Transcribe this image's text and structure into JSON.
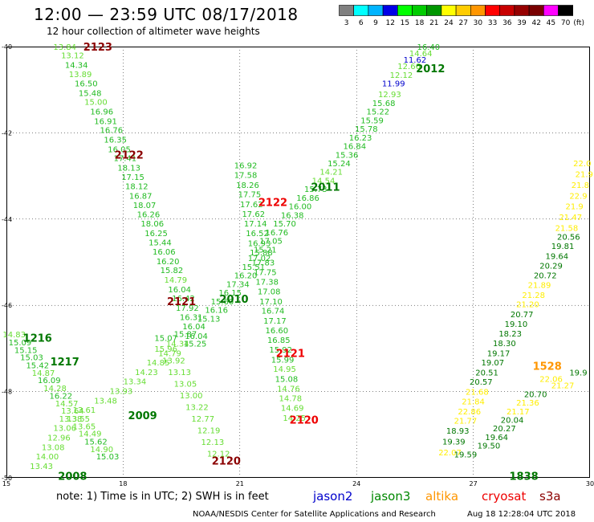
{
  "header": {
    "title": "12:00 — 23:59 UTC 08/17/2018",
    "subtitle": "12 hour collection of altimeter wave heights"
  },
  "color_scale": {
    "unit": "(ft)",
    "bins": [
      {
        "label": "3",
        "color": "#808080"
      },
      {
        "label": "6",
        "color": "#00ffff"
      },
      {
        "label": "9",
        "color": "#00b4ff"
      },
      {
        "label": "12",
        "color": "#0000e6"
      },
      {
        "label": "15",
        "color": "#00ff00"
      },
      {
        "label": "18",
        "color": "#00cc00"
      },
      {
        "label": "21",
        "color": "#009600"
      },
      {
        "label": "24",
        "color": "#ffff00"
      },
      {
        "label": "27",
        "color": "#ffcc00"
      },
      {
        "label": "30",
        "color": "#ff9600"
      },
      {
        "label": "33",
        "color": "#ff0000"
      },
      {
        "label": "36",
        "color": "#c80000"
      },
      {
        "label": "39",
        "color": "#960000"
      },
      {
        "label": "42",
        "color": "#780000"
      },
      {
        "label": "45",
        "color": "#ff00ff"
      },
      {
        "label": "70",
        "color": "#000000"
      }
    ]
  },
  "map": {
    "lon_min": 15,
    "lon_max": 30,
    "lat_min": -50,
    "lat_max": -40,
    "lon_ticks": [
      "15",
      "18",
      "21",
      "24",
      "27",
      "30"
    ],
    "lat_ticks": [
      "-40",
      "-42",
      "-44",
      "-46",
      "-48",
      "-50"
    ],
    "grid": true
  },
  "colors": {
    "c_lt": "#66dd33",
    "c_md": "#22bb22",
    "c_dk": "#007700",
    "c_bl": "#0000cc",
    "c_yl": "#ffee00",
    "c_ylg": "#ddee00"
  },
  "labels": [
    {
      "t": "13.84",
      "lon": 16.5,
      "lat": -40.0,
      "c": "c_lt"
    },
    {
      "t": "13.12",
      "lon": 16.7,
      "lat": -40.2,
      "c": "c_lt"
    },
    {
      "t": "14.34",
      "lon": 16.8,
      "lat": -40.42,
      "c": "c_md"
    },
    {
      "t": "13.89",
      "lon": 16.9,
      "lat": -40.63,
      "c": "c_lt"
    },
    {
      "t": "16.50",
      "lon": 17.05,
      "lat": -40.85,
      "c": "c_md"
    },
    {
      "t": "15.48",
      "lon": 17.15,
      "lat": -41.07,
      "c": "c_md"
    },
    {
      "t": "15.00",
      "lon": 17.3,
      "lat": -41.28,
      "c": "c_lt"
    },
    {
      "t": "16.96",
      "lon": 17.45,
      "lat": -41.5,
      "c": "c_md"
    },
    {
      "t": "16.91",
      "lon": 17.55,
      "lat": -41.72,
      "c": "c_md"
    },
    {
      "t": "16.76",
      "lon": 17.7,
      "lat": -41.93,
      "c": "c_md"
    },
    {
      "t": "16.35",
      "lon": 17.8,
      "lat": -42.15,
      "c": "c_md"
    },
    {
      "t": "16.05",
      "lon": 17.9,
      "lat": -42.37,
      "c": "c_md"
    },
    {
      "t": "17.41",
      "lon": 18.05,
      "lat": -42.58,
      "c": "c_md"
    },
    {
      "t": "18.13",
      "lon": 18.15,
      "lat": -42.8,
      "c": "c_md"
    },
    {
      "t": "17.15",
      "lon": 18.25,
      "lat": -43.02,
      "c": "c_md"
    },
    {
      "t": "18.12",
      "lon": 18.35,
      "lat": -43.23,
      "c": "c_md"
    },
    {
      "t": "16.87",
      "lon": 18.45,
      "lat": -43.45,
      "c": "c_md"
    },
    {
      "t": "18.07",
      "lon": 18.55,
      "lat": -43.67,
      "c": "c_md"
    },
    {
      "t": "16.26",
      "lon": 18.65,
      "lat": -43.88,
      "c": "c_md"
    },
    {
      "t": "18.06",
      "lon": 18.75,
      "lat": -44.1,
      "c": "c_md"
    },
    {
      "t": "16.25",
      "lon": 18.85,
      "lat": -44.32,
      "c": "c_md"
    },
    {
      "t": "15.44",
      "lon": 18.95,
      "lat": -44.53,
      "c": "c_md"
    },
    {
      "t": "16.06",
      "lon": 19.05,
      "lat": -44.75,
      "c": "c_md"
    },
    {
      "t": "16.20",
      "lon": 19.15,
      "lat": -44.97,
      "c": "c_md"
    },
    {
      "t": "15.82",
      "lon": 19.25,
      "lat": -45.18,
      "c": "c_md"
    },
    {
      "t": "14.79",
      "lon": 19.35,
      "lat": -45.4,
      "c": "c_lt"
    },
    {
      "t": "16.04",
      "lon": 19.45,
      "lat": -45.62,
      "c": "c_md"
    },
    {
      "t": "16.42",
      "lon": 19.55,
      "lat": -45.83,
      "c": "c_md"
    },
    {
      "t": "17.92",
      "lon": 19.65,
      "lat": -46.05,
      "c": "c_md"
    },
    {
      "t": "16.31",
      "lon": 19.75,
      "lat": -46.27,
      "c": "c_md"
    },
    {
      "t": "16.04",
      "lon": 19.82,
      "lat": -46.48,
      "c": "c_md"
    },
    {
      "t": "16.04",
      "lon": 19.88,
      "lat": -46.7,
      "c": "c_md"
    },
    {
      "t": "14.83",
      "lon": 15.2,
      "lat": -46.67,
      "c": "c_lt"
    },
    {
      "t": "15.09",
      "lon": 15.35,
      "lat": -46.85,
      "c": "c_md"
    },
    {
      "t": "15.15",
      "lon": 15.5,
      "lat": -47.03,
      "c": "c_md"
    },
    {
      "t": "15.03",
      "lon": 15.65,
      "lat": -47.2,
      "c": "c_md"
    },
    {
      "t": "15.42",
      "lon": 15.8,
      "lat": -47.38,
      "c": "c_md"
    },
    {
      "t": "14.87",
      "lon": 15.95,
      "lat": -47.56,
      "c": "c_lt"
    },
    {
      "t": "16.09",
      "lon": 16.1,
      "lat": -47.73,
      "c": "c_md"
    },
    {
      "t": "14.28",
      "lon": 16.25,
      "lat": -47.91,
      "c": "c_lt"
    },
    {
      "t": "16.22",
      "lon": 16.4,
      "lat": -48.09,
      "c": "c_md"
    },
    {
      "t": "14.57",
      "lon": 16.55,
      "lat": -48.27,
      "c": "c_lt"
    },
    {
      "t": "13.64",
      "lon": 16.7,
      "lat": -48.44,
      "c": "c_lt"
    },
    {
      "t": "13.55",
      "lon": 16.85,
      "lat": -48.62,
      "c": "c_lt"
    },
    {
      "t": "13.65",
      "lon": 17.0,
      "lat": -48.8,
      "c": "c_lt"
    },
    {
      "t": "14.49",
      "lon": 17.15,
      "lat": -48.97,
      "c": "c_lt"
    },
    {
      "t": "15.62",
      "lon": 17.3,
      "lat": -49.15,
      "c": "c_md"
    },
    {
      "t": "14.90",
      "lon": 17.45,
      "lat": -49.33,
      "c": "c_lt"
    },
    {
      "t": "15.03",
      "lon": 17.6,
      "lat": -49.5,
      "c": "c_md"
    },
    {
      "t": "13.43",
      "lon": 15.9,
      "lat": -49.72,
      "c": "c_lt"
    },
    {
      "t": "14.00",
      "lon": 16.05,
      "lat": -49.5,
      "c": "c_lt"
    },
    {
      "t": "13.08",
      "lon": 16.2,
      "lat": -49.28,
      "c": "c_lt"
    },
    {
      "t": "12.96",
      "lon": 16.35,
      "lat": -49.06,
      "c": "c_lt"
    },
    {
      "t": "13.06",
      "lon": 16.5,
      "lat": -48.84,
      "c": "c_lt"
    },
    {
      "t": "13.38",
      "lon": 16.65,
      "lat": -48.62,
      "c": "c_lt"
    },
    {
      "t": "13.61",
      "lon": 17.0,
      "lat": -48.42,
      "c": "c_lt"
    },
    {
      "t": "13.48",
      "lon": 17.55,
      "lat": -48.2,
      "c": "c_lt"
    },
    {
      "t": "13.93",
      "lon": 17.95,
      "lat": -47.98,
      "c": "c_lt"
    },
    {
      "t": "13.34",
      "lon": 18.3,
      "lat": -47.76,
      "c": "c_lt"
    },
    {
      "t": "14.23",
      "lon": 18.6,
      "lat": -47.54,
      "c": "c_lt"
    },
    {
      "t": "14.85",
      "lon": 18.9,
      "lat": -47.32,
      "c": "c_lt"
    },
    {
      "t": "14.79",
      "lon": 19.2,
      "lat": -47.1,
      "c": "c_lt"
    },
    {
      "t": "14.34",
      "lon": 19.4,
      "lat": -46.88,
      "c": "c_lt"
    },
    {
      "t": "15.87",
      "lon": 19.6,
      "lat": -46.66,
      "c": "c_md"
    },
    {
      "t": "15.25",
      "lon": 19.85,
      "lat": -46.88,
      "c": "c_md"
    },
    {
      "t": "15.13",
      "lon": 20.2,
      "lat": -46.3,
      "c": "c_md"
    },
    {
      "t": "16.16",
      "lon": 20.4,
      "lat": -46.1,
      "c": "c_md"
    },
    {
      "t": "15.60",
      "lon": 20.55,
      "lat": -45.9,
      "c": "c_md"
    },
    {
      "t": "16.15",
      "lon": 20.75,
      "lat": -45.7,
      "c": "c_md"
    },
    {
      "t": "17.34",
      "lon": 20.95,
      "lat": -45.5,
      "c": "c_md"
    },
    {
      "t": "16.20",
      "lon": 21.15,
      "lat": -45.3,
      "c": "c_md"
    },
    {
      "t": "15.51",
      "lon": 21.35,
      "lat": -45.1,
      "c": "c_md"
    },
    {
      "t": "17.02",
      "lon": 21.5,
      "lat": -44.9,
      "c": "c_md"
    },
    {
      "t": "15.21",
      "lon": 21.65,
      "lat": -44.7,
      "c": "c_md"
    },
    {
      "t": "17.05",
      "lon": 21.8,
      "lat": -44.5,
      "c": "c_md"
    },
    {
      "t": "16.76",
      "lon": 21.95,
      "lat": -44.3,
      "c": "c_md"
    },
    {
      "t": "15.70",
      "lon": 22.15,
      "lat": -44.1,
      "c": "c_md"
    },
    {
      "t": "16.38",
      "lon": 22.35,
      "lat": -43.9,
      "c": "c_md"
    },
    {
      "t": "16.00",
      "lon": 22.55,
      "lat": -43.7,
      "c": "c_md"
    },
    {
      "t": "16.86",
      "lon": 22.75,
      "lat": -43.5,
      "c": "c_md"
    },
    {
      "t": "15.73",
      "lon": 22.95,
      "lat": -43.3,
      "c": "c_md"
    },
    {
      "t": "14.54",
      "lon": 23.15,
      "lat": -43.1,
      "c": "c_lt"
    },
    {
      "t": "14.21",
      "lon": 23.35,
      "lat": -42.9,
      "c": "c_lt"
    },
    {
      "t": "15.24",
      "lon": 23.55,
      "lat": -42.7,
      "c": "c_md"
    },
    {
      "t": "15.36",
      "lon": 23.75,
      "lat": -42.5,
      "c": "c_md"
    },
    {
      "t": "16.84",
      "lon": 23.95,
      "lat": -42.3,
      "c": "c_md"
    },
    {
      "t": "16.23",
      "lon": 24.1,
      "lat": -42.1,
      "c": "c_md"
    },
    {
      "t": "15.78",
      "lon": 24.25,
      "lat": -41.9,
      "c": "c_md"
    },
    {
      "t": "15.59",
      "lon": 24.4,
      "lat": -41.7,
      "c": "c_md"
    },
    {
      "t": "15.22",
      "lon": 24.55,
      "lat": -41.5,
      "c": "c_md"
    },
    {
      "t": "15.68",
      "lon": 24.7,
      "lat": -41.3,
      "c": "c_md"
    },
    {
      "t": "12.93",
      "lon": 24.85,
      "lat": -41.1,
      "c": "c_lt"
    },
    {
      "t": "11.99",
      "lon": 24.95,
      "lat": -40.85,
      "c": "c_bl"
    },
    {
      "t": "12.12",
      "lon": 25.15,
      "lat": -40.65,
      "c": "c_lt"
    },
    {
      "t": "12.66",
      "lon": 25.35,
      "lat": -40.45,
      "c": "c_lt"
    },
    {
      "t": "11.62",
      "lon": 25.5,
      "lat": -40.3,
      "c": "c_bl"
    },
    {
      "t": "14.64",
      "lon": 25.65,
      "lat": -40.15,
      "c": "c_lt"
    },
    {
      "t": "16.40",
      "lon": 25.85,
      "lat": -40.0,
      "c": "c_md"
    },
    {
      "t": "16.92",
      "lon": 21.15,
      "lat": -42.75,
      "c": "c_md"
    },
    {
      "t": "17.58",
      "lon": 21.15,
      "lat": -42.97,
      "c": "c_md"
    },
    {
      "t": "18.26",
      "lon": 21.2,
      "lat": -43.2,
      "c": "c_md"
    },
    {
      "t": "17.75",
      "lon": 21.25,
      "lat": -43.42,
      "c": "c_md"
    },
    {
      "t": "17.62",
      "lon": 21.3,
      "lat": -43.65,
      "c": "c_md"
    },
    {
      "t": "17.62",
      "lon": 21.35,
      "lat": -43.87,
      "c": "c_md"
    },
    {
      "t": "17.14",
      "lon": 21.4,
      "lat": -44.1,
      "c": "c_md"
    },
    {
      "t": "16.52",
      "lon": 21.45,
      "lat": -44.32,
      "c": "c_md"
    },
    {
      "t": "16.93",
      "lon": 21.5,
      "lat": -44.55,
      "c": "c_md"
    },
    {
      "t": "15.88",
      "lon": 21.55,
      "lat": -44.77,
      "c": "c_md"
    },
    {
      "t": "17.83",
      "lon": 21.6,
      "lat": -45.0,
      "c": "c_md"
    },
    {
      "t": "17.75",
      "lon": 21.65,
      "lat": -45.22,
      "c": "c_md"
    },
    {
      "t": "17.38",
      "lon": 21.7,
      "lat": -45.45,
      "c": "c_md"
    },
    {
      "t": "17.08",
      "lon": 21.75,
      "lat": -45.67,
      "c": "c_md"
    },
    {
      "t": "17.10",
      "lon": 21.8,
      "lat": -45.9,
      "c": "c_md"
    },
    {
      "t": "16.74",
      "lon": 21.85,
      "lat": -46.12,
      "c": "c_md"
    },
    {
      "t": "17.17",
      "lon": 21.9,
      "lat": -46.35,
      "c": "c_md"
    },
    {
      "t": "16.60",
      "lon": 21.95,
      "lat": -46.57,
      "c": "c_md"
    },
    {
      "t": "16.85",
      "lon": 22.0,
      "lat": -46.8,
      "c": "c_md"
    },
    {
      "t": "15.92",
      "lon": 22.05,
      "lat": -47.02,
      "c": "c_md"
    },
    {
      "t": "15.99",
      "lon": 22.1,
      "lat": -47.25,
      "c": "c_md"
    },
    {
      "t": "14.95",
      "lon": 22.15,
      "lat": -47.47,
      "c": "c_lt"
    },
    {
      "t": "15.08",
      "lon": 22.2,
      "lat": -47.7,
      "c": "c_md"
    },
    {
      "t": "14.76",
      "lon": 22.25,
      "lat": -47.92,
      "c": "c_lt"
    },
    {
      "t": "14.78",
      "lon": 22.3,
      "lat": -48.15,
      "c": "c_lt"
    },
    {
      "t": "14.69",
      "lon": 22.35,
      "lat": -48.37,
      "c": "c_lt"
    },
    {
      "t": "14.25",
      "lon": 22.4,
      "lat": -48.6,
      "c": "c_lt"
    },
    {
      "t": "15.96",
      "lon": 19.1,
      "lat": -47.0,
      "c": "c_lt"
    },
    {
      "t": "13.92",
      "lon": 19.3,
      "lat": -47.27,
      "c": "c_lt"
    },
    {
      "t": "13.13",
      "lon": 19.45,
      "lat": -47.54,
      "c": "c_lt"
    },
    {
      "t": "13.05",
      "lon": 19.6,
      "lat": -47.81,
      "c": "c_lt"
    },
    {
      "t": "13.00",
      "lon": 19.75,
      "lat": -48.08,
      "c": "c_lt"
    },
    {
      "t": "13.22",
      "lon": 19.9,
      "lat": -48.35,
      "c": "c_lt"
    },
    {
      "t": "12.77",
      "lon": 20.05,
      "lat": -48.62,
      "c": "c_lt"
    },
    {
      "t": "12.19",
      "lon": 20.2,
      "lat": -48.89,
      "c": "c_lt"
    },
    {
      "t": "12.13",
      "lon": 20.3,
      "lat": -49.16,
      "c": "c_lt"
    },
    {
      "t": "12.12",
      "lon": 20.45,
      "lat": -49.43,
      "c": "c_lt"
    },
    {
      "t": "15.07",
      "lon": 19.1,
      "lat": -46.75,
      "c": "c_md"
    },
    {
      "t": "20.56",
      "lon": 29.45,
      "lat": -44.4,
      "c": "c_dk"
    },
    {
      "t": "19.81",
      "lon": 29.3,
      "lat": -44.62,
      "c": "c_dk"
    },
    {
      "t": "19.64",
      "lon": 29.15,
      "lat": -44.85,
      "c": "c_dk"
    },
    {
      "t": "20.29",
      "lon": 29.0,
      "lat": -45.07,
      "c": "c_dk"
    },
    {
      "t": "20.72",
      "lon": 28.85,
      "lat": -45.3,
      "c": "c_dk"
    },
    {
      "t": "21.89",
      "lon": 28.7,
      "lat": -45.52,
      "c": "c_yl"
    },
    {
      "t": "21.28",
      "lon": 28.55,
      "lat": -45.75,
      "c": "c_yl"
    },
    {
      "t": "21.20",
      "lon": 28.4,
      "lat": -45.97,
      "c": "c_yl"
    },
    {
      "t": "20.77",
      "lon": 28.25,
      "lat": -46.2,
      "c": "c_dk"
    },
    {
      "t": "19.10",
      "lon": 28.1,
      "lat": -46.42,
      "c": "c_dk"
    },
    {
      "t": "18.23",
      "lon": 27.95,
      "lat": -46.65,
      "c": "c_dk"
    },
    {
      "t": "18.30",
      "lon": 27.8,
      "lat": -46.87,
      "c": "c_dk"
    },
    {
      "t": "19.17",
      "lon": 27.65,
      "lat": -47.1,
      "c": "c_dk"
    },
    {
      "t": "19.07",
      "lon": 27.5,
      "lat": -47.32,
      "c": "c_dk"
    },
    {
      "t": "20.51",
      "lon": 27.35,
      "lat": -47.55,
      "c": "c_dk"
    },
    {
      "t": "20.57",
      "lon": 27.2,
      "lat": -47.77,
      "c": "c_dk"
    },
    {
      "t": "21.68",
      "lon": 27.1,
      "lat": -48.0,
      "c": "c_yl"
    },
    {
      "t": "21.84",
      "lon": 27.0,
      "lat": -48.22,
      "c": "c_yl"
    },
    {
      "t": "22.86",
      "lon": 26.9,
      "lat": -48.45,
      "c": "c_yl"
    },
    {
      "t": "21.77",
      "lon": 26.8,
      "lat": -48.67,
      "c": "c_yl"
    },
    {
      "t": "18.93",
      "lon": 26.6,
      "lat": -48.9,
      "c": "c_dk"
    },
    {
      "t": "19.39",
      "lon": 26.5,
      "lat": -49.15,
      "c": "c_dk"
    },
    {
      "t": "22.07",
      "lon": 26.4,
      "lat": -49.4,
      "c": "c_yl"
    },
    {
      "t": "19.59",
      "lon": 26.8,
      "lat": -49.45,
      "c": "c_dk"
    },
    {
      "t": "19.50",
      "lon": 27.4,
      "lat": -49.25,
      "c": "c_dk"
    },
    {
      "t": "19.64",
      "lon": 27.6,
      "lat": -49.05,
      "c": "c_dk"
    },
    {
      "t": "20.27",
      "lon": 27.8,
      "lat": -48.85,
      "c": "c_dk"
    },
    {
      "t": "20.04",
      "lon": 28.0,
      "lat": -48.65,
      "c": "c_dk"
    },
    {
      "t": "21.17",
      "lon": 28.15,
      "lat": -48.45,
      "c": "c_yl"
    },
    {
      "t": "21.36",
      "lon": 28.4,
      "lat": -48.25,
      "c": "c_yl"
    },
    {
      "t": "20.70",
      "lon": 28.6,
      "lat": -48.05,
      "c": "c_dk"
    },
    {
      "t": "22.06",
      "lon": 29.0,
      "lat": -47.7,
      "c": "c_yl"
    },
    {
      "t": "21.27",
      "lon": 29.3,
      "lat": -47.85,
      "c": "c_yl"
    },
    {
      "t": "19.9",
      "lon": 29.7,
      "lat": -47.55,
      "c": "c_dk"
    },
    {
      "t": "21.8",
      "lon": 29.75,
      "lat": -43.2,
      "c": "c_yl"
    },
    {
      "t": "22.9",
      "lon": 29.7,
      "lat": -43.45,
      "c": "c_yl"
    },
    {
      "t": "21.9",
      "lon": 29.6,
      "lat": -43.7,
      "c": "c_yl"
    },
    {
      "t": "21.47",
      "lon": 29.5,
      "lat": -43.95,
      "c": "c_yl"
    },
    {
      "t": "21.58",
      "lon": 29.4,
      "lat": -44.2,
      "c": "c_yl"
    },
    {
      "t": "22.0",
      "lon": 29.8,
      "lat": -42.7,
      "c": "c_yl"
    },
    {
      "t": "21.9",
      "lon": 29.85,
      "lat": -42.95,
      "c": "c_yl"
    }
  ],
  "pass_labels": [
    {
      "t": "2123",
      "lon": 17.35,
      "lat": -40.0,
      "c": "#8b0000"
    },
    {
      "t": "2122",
      "lon": 18.15,
      "lat": -42.5,
      "c": "#8b0000"
    },
    {
      "t": "2121",
      "lon": 19.5,
      "lat": -45.9,
      "c": "#8b0000"
    },
    {
      "t": "2122",
      "lon": 21.85,
      "lat": -43.6,
      "c": "#ee0000"
    },
    {
      "t": "2121",
      "lon": 22.3,
      "lat": -47.1,
      "c": "#ee0000"
    },
    {
      "t": "2120",
      "lon": 22.65,
      "lat": -48.65,
      "c": "#ee0000"
    },
    {
      "t": "2120",
      "lon": 20.65,
      "lat": -49.6,
      "c": "#8b0000"
    },
    {
      "t": "2012",
      "lon": 25.9,
      "lat": -40.5,
      "c": "#007700"
    },
    {
      "t": "2011",
      "lon": 23.2,
      "lat": -43.25,
      "c": "#007700"
    },
    {
      "t": "2010",
      "lon": 20.85,
      "lat": -45.85,
      "c": "#007700"
    },
    {
      "t": "2009",
      "lon": 18.5,
      "lat": -48.55,
      "c": "#007700"
    },
    {
      "t": "2008",
      "lon": 16.7,
      "lat": -49.95,
      "c": "#007700"
    },
    {
      "t": "1216",
      "lon": 15.8,
      "lat": -46.75,
      "c": "#007700"
    },
    {
      "t": "1217",
      "lon": 16.5,
      "lat": -47.3,
      "c": "#007700"
    },
    {
      "t": "1528",
      "lon": 28.9,
      "lat": -47.4,
      "c": "#ff9600"
    },
    {
      "t": "1838",
      "lon": 28.3,
      "lat": -49.95,
      "c": "#007700"
    }
  ],
  "footer": {
    "note": "note:  1) Time is in UTC; 2) SWH is in feet",
    "satellites": [
      {
        "name": "jason2",
        "color": "#0000cc"
      },
      {
        "name": "jason3",
        "color": "#008800"
      },
      {
        "name": "altika",
        "color": "#ff9600"
      },
      {
        "name": "cryosat",
        "color": "#ee0000"
      },
      {
        "name": "s3a",
        "color": "#8b0000"
      }
    ],
    "credit": "NOAA/NESDIS Center for Satellite Applications and Research",
    "stamp": "Aug 18 12:28:04 UTC 2018"
  }
}
